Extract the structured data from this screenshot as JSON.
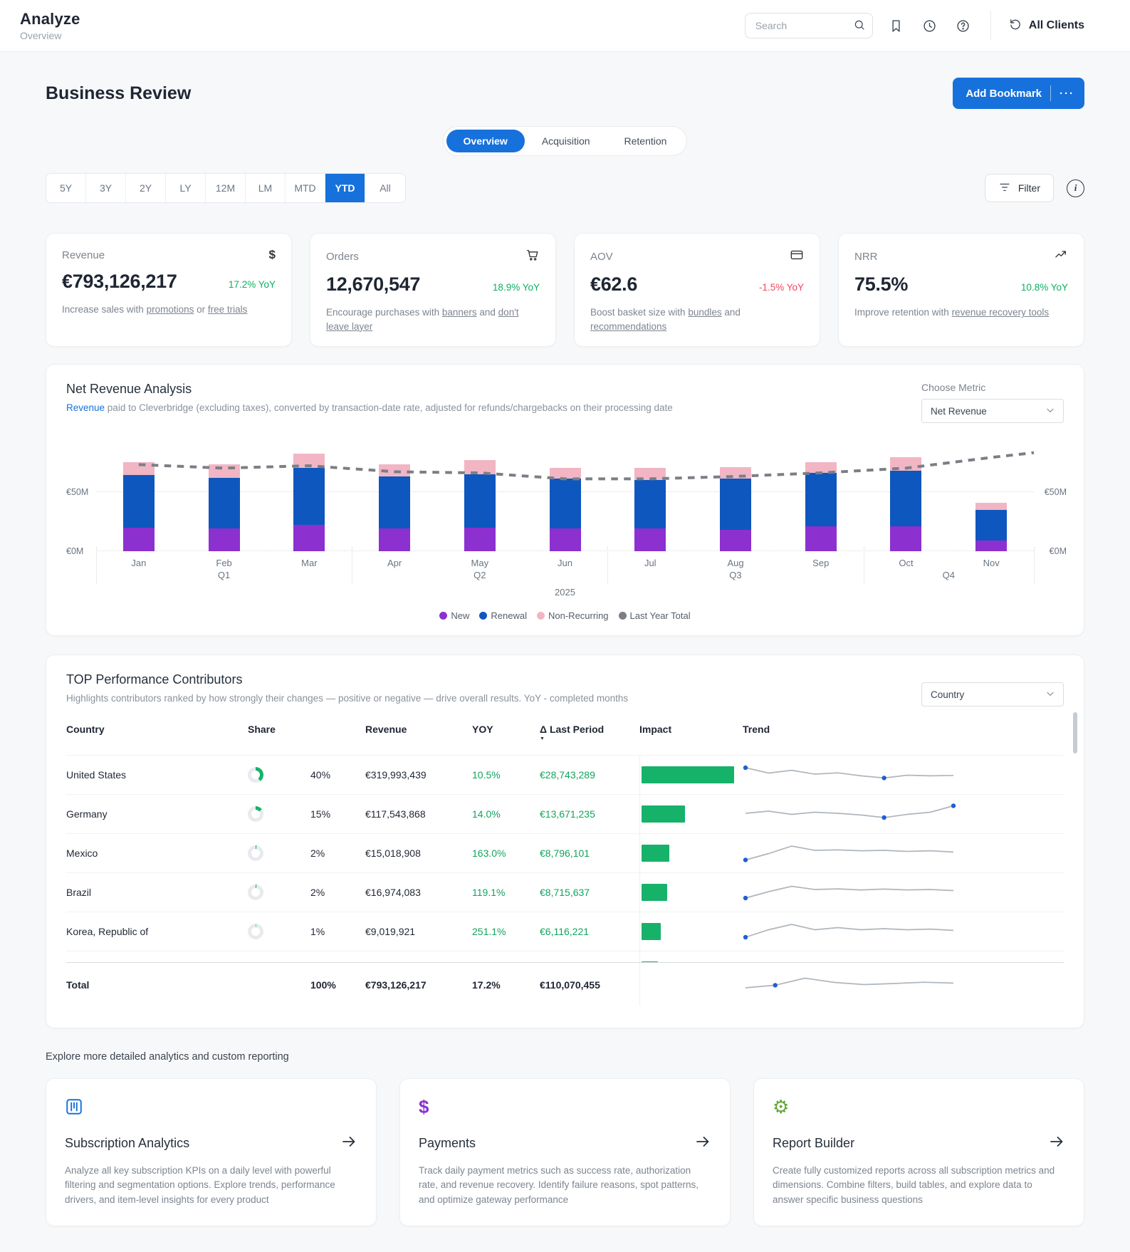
{
  "colors": {
    "accent": "#1671dc",
    "green": "#0caf60",
    "red": "#f5455f",
    "impact": "#17b26a",
    "spark_line": "#aeb6bd",
    "spark_dot": "#1f5fd1"
  },
  "header": {
    "title": "Analyze",
    "subtitle": "Overview",
    "search_placeholder": "Search",
    "all_clients": "All Clients"
  },
  "page": {
    "title": "Business Review",
    "add_bookmark": "Add Bookmark",
    "more_dots": "···",
    "explore_text": "Explore more detailed analytics and custom reporting"
  },
  "tabs": [
    {
      "label": "Overview",
      "active": true
    },
    {
      "label": "Acquisition",
      "active": false
    },
    {
      "label": "Retention",
      "active": false
    }
  ],
  "time_ranges": [
    {
      "label": "5Y"
    },
    {
      "label": "3Y"
    },
    {
      "label": "2Y"
    },
    {
      "label": "LY"
    },
    {
      "label": "12M"
    },
    {
      "label": "LM"
    },
    {
      "label": "MTD"
    },
    {
      "label": "YTD",
      "active": true
    },
    {
      "label": "All"
    }
  ],
  "controls": {
    "filter_label": "Filter",
    "info_glyph": "i"
  },
  "kpis": [
    {
      "label": "Revenue",
      "icon": "dollar",
      "value": "€793,126,217",
      "yoy": "17.2% YoY",
      "yoy_color": "#0caf60",
      "desc": [
        {
          "t": "Increase sales with "
        },
        {
          "t": "promotions",
          "link": true
        },
        {
          "t": " or "
        },
        {
          "t": "free trials",
          "link": true
        }
      ]
    },
    {
      "label": "Orders",
      "icon": "cart",
      "value": "12,670,547",
      "yoy": "18.9% YoY",
      "yoy_color": "#0caf60",
      "desc": [
        {
          "t": "Encourage purchases with "
        },
        {
          "t": "banners",
          "link": true
        },
        {
          "t": " and "
        },
        {
          "t": "don't leave layer",
          "link": true
        }
      ]
    },
    {
      "label": "AOV",
      "icon": "card",
      "value": "€62.6",
      "yoy": "-1.5% YoY",
      "yoy_color": "#f5455f",
      "desc": [
        {
          "t": "Boost basket size with "
        },
        {
          "t": "bundles",
          "link": true
        },
        {
          "t": " and "
        },
        {
          "t": "recommendations",
          "link": true
        }
      ]
    },
    {
      "label": "NRR",
      "icon": "trend-up",
      "value": "75.5%",
      "yoy": "10.8% YoY",
      "yoy_color": "#0caf60",
      "desc": [
        {
          "t": "Improve retention with "
        },
        {
          "t": "revenue recovery tools",
          "link": true
        }
      ]
    }
  ],
  "chart": {
    "title": "Net Revenue Analysis",
    "subtitle_link": "Revenue",
    "subtitle_rest": " paid to Cleverbridge (excluding taxes), converted by transaction-date rate, adjusted for refunds/chargebacks on their processing date",
    "choose_metric_label": "Choose Metric",
    "metric_selected": "Net Revenue"
  },
  "chart_data": {
    "type": "bar",
    "stacked": true,
    "title": "Net Revenue Analysis",
    "categories": [
      "Jan",
      "Feb",
      "Mar",
      "Apr",
      "May",
      "Jun",
      "Jul",
      "Aug",
      "Sep",
      "Oct",
      "Nov"
    ],
    "quarters": [
      {
        "label": "Q1",
        "start": 0,
        "end": 2
      },
      {
        "label": "Q2",
        "start": 3,
        "end": 5
      },
      {
        "label": "Q3",
        "start": 6,
        "end": 8
      },
      {
        "label": "Q4",
        "start": 9,
        "end": 10
      }
    ],
    "year_label": "2025",
    "unit": "€M (estimated from gridlines)",
    "ylim": [
      0,
      90
    ],
    "yticks": [
      {
        "value": 0,
        "label": "€0M"
      },
      {
        "value": 50,
        "label": "€50M"
      }
    ],
    "legend_position": "bottom",
    "series": [
      {
        "name": "New",
        "color": "#8c30cf",
        "values": [
          20,
          19,
          22,
          19,
          20,
          19,
          19,
          18,
          21,
          21,
          9
        ]
      },
      {
        "name": "Renewal",
        "color": "#0e57be",
        "values": [
          44,
          43,
          48,
          44,
          45,
          42,
          41,
          43,
          45,
          47,
          26
        ]
      },
      {
        "name": "Non-Recurring",
        "color": "#f2b5c4",
        "values": [
          11,
          11,
          12,
          10,
          12,
          9,
          10,
          10,
          9,
          11,
          6
        ]
      },
      {
        "name": "Last Year Total",
        "color": "#7b7f85",
        "style": "dashed-line",
        "values": [
          73,
          70,
          72,
          67,
          66,
          61,
          61,
          63,
          66,
          70,
          79
        ],
        "edge_value": 83
      }
    ]
  },
  "table": {
    "title": "TOP Performance Contributors",
    "subtitle": "Highlights contributors ranked by how strongly their changes — positive or negative — drive overall results. YoY - completed months",
    "dimension_selected": "Country",
    "delta_prefix": "Δ",
    "sort_indicator": "▼",
    "columns": [
      {
        "label": "Country"
      },
      {
        "label": "Share"
      },
      {
        "label": "Revenue"
      },
      {
        "label": "YOY"
      },
      {
        "label": "Last Period",
        "delta": true,
        "sorted": true
      },
      {
        "label": "Impact"
      },
      {
        "label": "Trend"
      }
    ],
    "rows": [
      {
        "name": "United States",
        "share_pct": 40,
        "share_label": "40%",
        "revenue": "€319,993,439",
        "yoy": "10.5%",
        "last_period": "€28,743,289",
        "impact_pct": 100,
        "trend": [
          0.8,
          0.55,
          0.68,
          0.5,
          0.56,
          0.42,
          0.32,
          0.45,
          0.42,
          0.44
        ],
        "trend_dots": [
          0,
          6
        ]
      },
      {
        "name": "Germany",
        "share_pct": 15,
        "share_label": "15%",
        "revenue": "€117,543,868",
        "yoy": "14.0%",
        "last_period": "€13,671,235",
        "impact_pct": 47,
        "trend": [
          0.5,
          0.6,
          0.45,
          0.55,
          0.5,
          0.42,
          0.3,
          0.45,
          0.55,
          0.85
        ],
        "trend_dots": [
          6,
          9
        ]
      },
      {
        "name": "Mexico",
        "share_pct": 2,
        "share_label": "2%",
        "revenue": "€15,018,908",
        "yoy": "163.0%",
        "last_period": "€8,796,101",
        "impact_pct": 30,
        "trend": [
          0.15,
          0.45,
          0.8,
          0.6,
          0.62,
          0.58,
          0.6,
          0.55,
          0.58,
          0.52
        ],
        "trend_dots": [
          0
        ]
      },
      {
        "name": "Brazil",
        "share_pct": 2,
        "share_label": "2%",
        "revenue": "€16,974,083",
        "yoy": "119.1%",
        "last_period": "€8,715,637",
        "impact_pct": 28,
        "trend": [
          0.2,
          0.5,
          0.75,
          0.6,
          0.63,
          0.58,
          0.62,
          0.58,
          0.6,
          0.55
        ],
        "trend_dots": [
          0
        ]
      },
      {
        "name": "Korea, Republic of",
        "share_pct": 1,
        "share_label": "1%",
        "revenue": "€9,019,921",
        "yoy": "251.1%",
        "last_period": "€6,116,221",
        "impact_pct": 21,
        "trend": [
          0.2,
          0.55,
          0.8,
          0.55,
          0.65,
          0.55,
          0.6,
          0.55,
          0.58,
          0.52
        ],
        "trend_dots": [
          0
        ]
      }
    ],
    "partial_row": {
      "impact_pct": 18
    },
    "total": {
      "name": "Total",
      "share_label": "100%",
      "revenue": "€793,126,217",
      "yoy": "17.2%",
      "last_period": "€110,070,455",
      "trend": [
        0.3,
        0.42,
        0.75,
        0.55,
        0.45,
        0.5,
        0.56,
        0.52
      ],
      "trend_dots": [
        1
      ]
    }
  },
  "explore_cards": [
    {
      "title": "Subscription Analytics",
      "icon": "columns",
      "icon_color": "#1671dc",
      "desc": "Analyze all key subscription KPIs on a daily level with powerful filtering and segmentation options. Explore trends, performance drivers, and item-level insights for every product"
    },
    {
      "title": "Payments",
      "icon": "currency",
      "icon_color": "#8c30cf",
      "desc": "Track daily payment metrics such as success rate, authorization rate, and revenue recovery. Identify failure reasons, spot patterns, and optimize gateway performance"
    },
    {
      "title": "Report Builder",
      "icon": "gear",
      "icon_color": "#5fa832",
      "desc": "Create fully customized reports across all subscription metrics and dimensions. Combine filters, build tables, and explore data to answer specific business questions"
    }
  ]
}
